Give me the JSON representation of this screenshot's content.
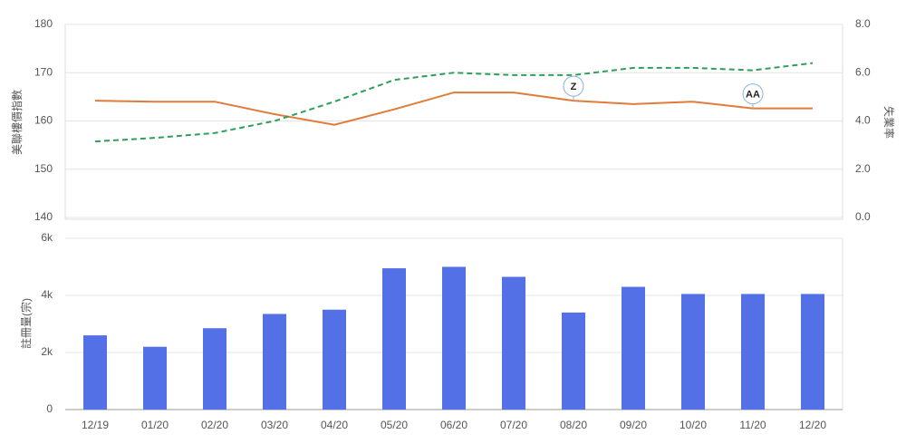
{
  "chart_data": [
    {
      "type": "line",
      "y_label": "美聯樓價指數",
      "y2_label": "失業率",
      "ylim": [
        140,
        180
      ],
      "yticks": [
        140,
        150,
        160,
        170,
        180
      ],
      "y2lim": [
        0,
        8
      ],
      "y2ticks": [
        {
          "value": 0,
          "label": "0.0"
        },
        {
          "value": 2,
          "label": "2.0"
        },
        {
          "value": 4,
          "label": "4.0"
        },
        {
          "value": 6,
          "label": "6.0"
        },
        {
          "value": 8,
          "label": "8.0"
        }
      ],
      "grid": true,
      "series": [
        {
          "color": "#e07b39",
          "values": [
            164.2,
            164.0,
            164.0,
            161.4,
            159.2,
            162.4,
            165.9,
            165.9,
            164.2,
            163.5,
            164.0,
            162.6,
            162.6
          ]
        },
        {
          "color": "#2e9e5b",
          "dashed": true,
          "axis": "y2",
          "values": [
            3.15,
            3.3,
            3.5,
            4.0,
            4.8,
            5.7,
            6.0,
            5.9,
            5.9,
            6.2,
            6.2,
            6.1,
            6.4
          ]
        }
      ],
      "annotations": [
        {
          "text": "Z",
          "x": "08/20"
        },
        {
          "text": "AA",
          "x": "11/20"
        }
      ]
    },
    {
      "type": "bar",
      "y_label": "註冊量(宗)",
      "categories": [
        "12/19",
        "01/20",
        "02/20",
        "03/20",
        "04/20",
        "05/20",
        "06/20",
        "07/20",
        "08/20",
        "09/20",
        "10/20",
        "11/20",
        "12/20"
      ],
      "values": [
        2600,
        2200,
        2850,
        3350,
        3500,
        4950,
        5000,
        4650,
        3400,
        4300,
        4050,
        4050,
        4050
      ],
      "color": "#5470e6",
      "ylim": [
        0,
        6000
      ],
      "yticks": [
        0,
        {
          "value": 2000,
          "label": "2k"
        },
        {
          "value": 4000,
          "label": "4k"
        },
        {
          "value": 6000,
          "label": "6k"
        }
      ],
      "grid": true
    }
  ]
}
